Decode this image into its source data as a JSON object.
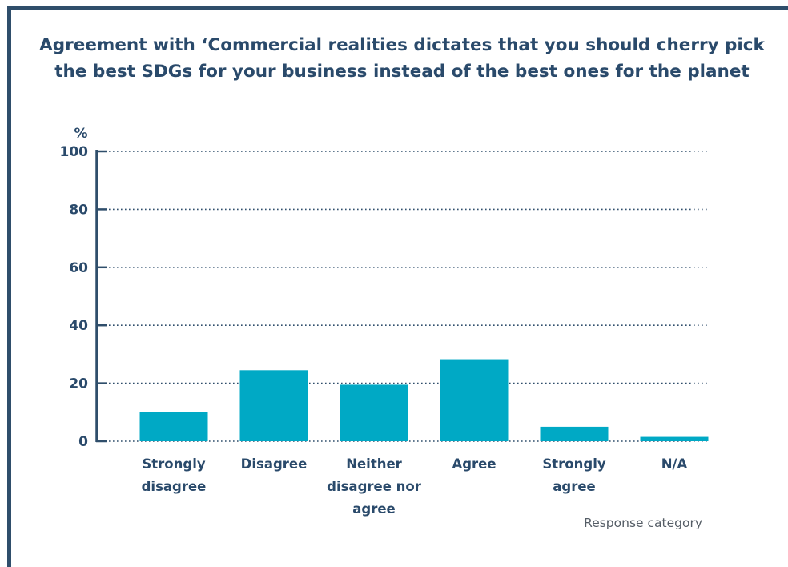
{
  "chart_data": {
    "type": "bar",
    "title": "Agreement with ‘Commercial realities dictates that you should cherry pick the best SDGs for your business instead of the best ones for the planet",
    "ylabel": "%",
    "xlabel": "Response category",
    "ylim": [
      0,
      100
    ],
    "yticks": [
      0,
      20,
      40,
      60,
      80,
      100
    ],
    "grid": true,
    "categories": [
      [
        "Strongly",
        "disagree"
      ],
      [
        "Disagree"
      ],
      [
        "Neither",
        "disagree nor",
        "agree"
      ],
      [
        "Agree"
      ],
      [
        "Strongly",
        "agree"
      ],
      [
        "N/A"
      ]
    ],
    "values": [
      10,
      24.5,
      19.5,
      28.3,
      5,
      1.5
    ],
    "colors": {
      "bar": "#00a9c5",
      "text": "#2a4a6b",
      "axis": "#2f4e6b",
      "grid": "#2f4e6b"
    }
  }
}
